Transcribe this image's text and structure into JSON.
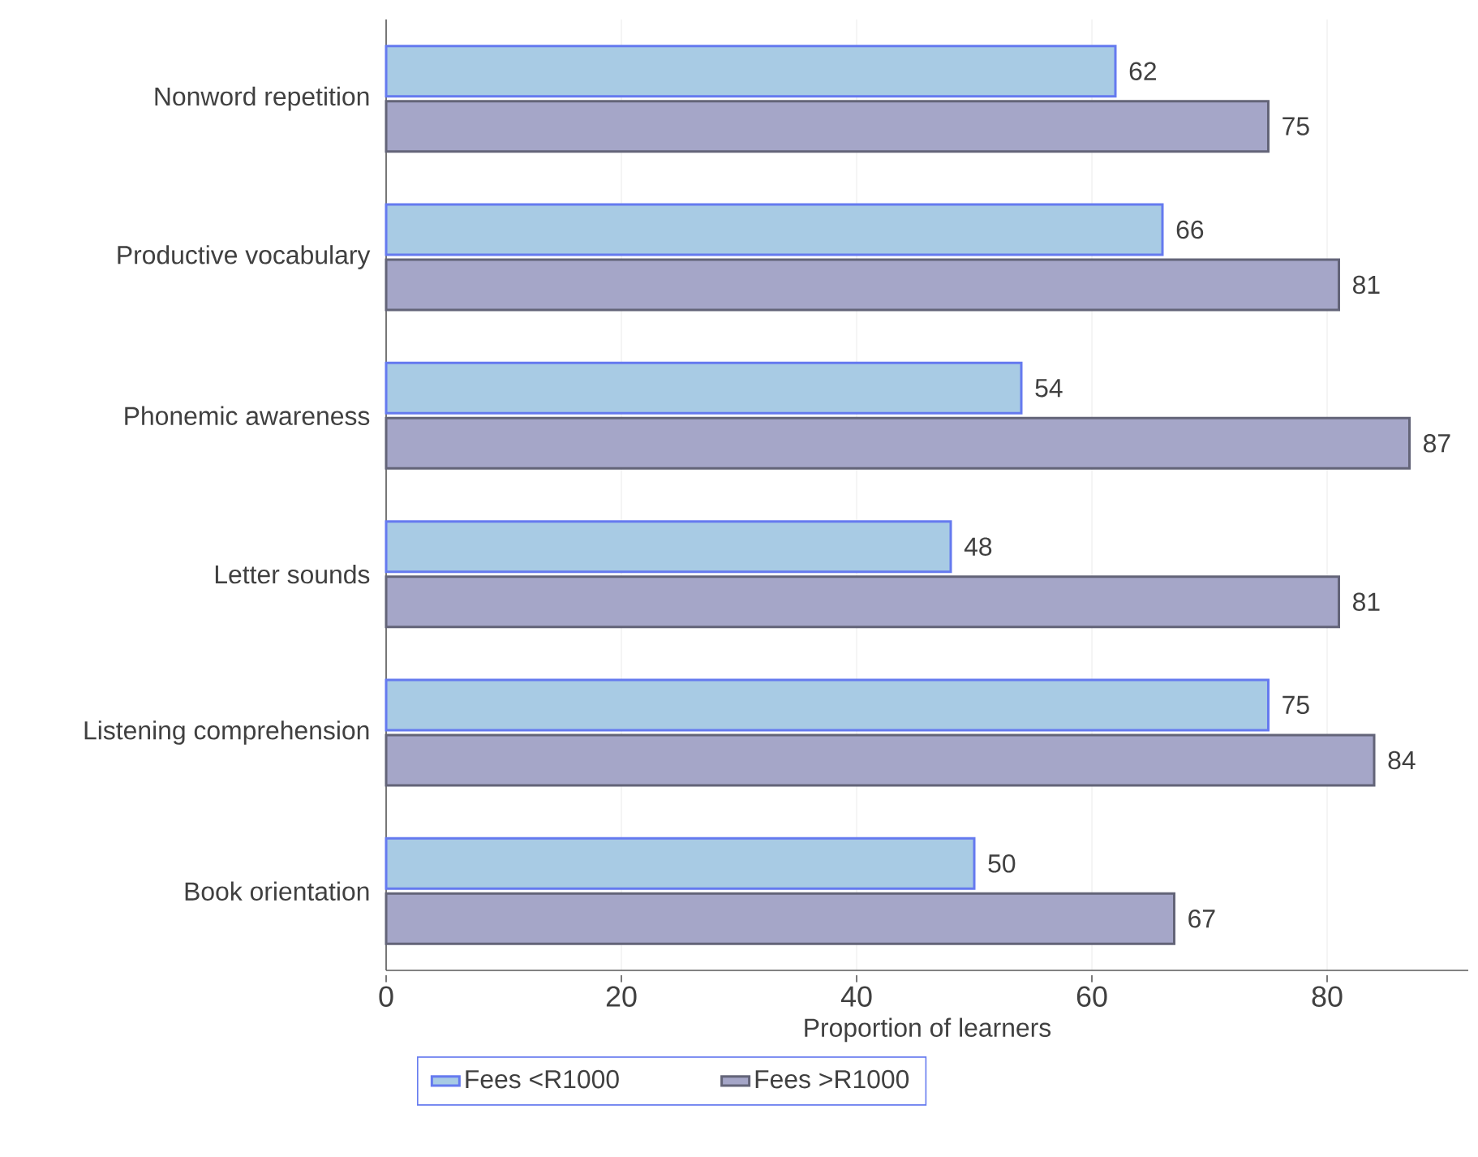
{
  "chart_data": {
    "type": "bar",
    "orientation": "horizontal",
    "xlabel": "Proportion of learners",
    "categories": [
      "Nonword repetition",
      "Productive vocabulary",
      "Phonemic awareness",
      "Letter sounds",
      "Listening comprehension",
      "Book orientation"
    ],
    "series": [
      {
        "name": "Fees <R1000",
        "color": "#a8cbe4",
        "values": [
          62,
          66,
          54,
          48,
          75,
          50
        ]
      },
      {
        "name": "Fees >R1000",
        "color": "#a5a6c8",
        "values": [
          75,
          81,
          87,
          81,
          84,
          67
        ]
      }
    ],
    "xlim": [
      0,
      92
    ],
    "xticks": [
      0,
      20,
      40,
      60,
      80
    ],
    "grid": "x",
    "legend": "bottom",
    "data_labels": true
  }
}
